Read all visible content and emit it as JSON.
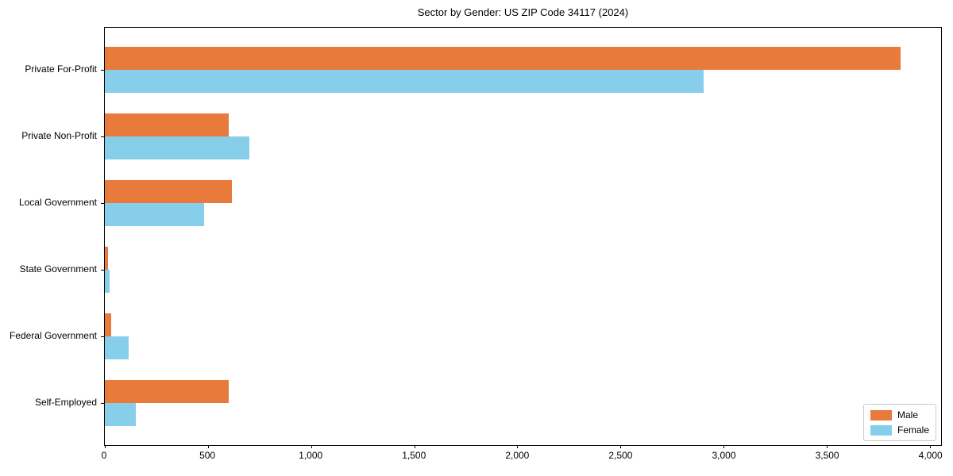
{
  "chart_data": {
    "type": "bar",
    "orientation": "horizontal",
    "title": "Sector by Gender: US ZIP Code 34117 (2024)",
    "categories": [
      "Private For-Profit",
      "Private Non-Profit",
      "Local Government",
      "State Government",
      "Federal Government",
      "Self-Employed"
    ],
    "series": [
      {
        "name": "Male",
        "color": "#E87A3C",
        "values": [
          3860,
          600,
          615,
          15,
          30,
          600
        ]
      },
      {
        "name": "Female",
        "color": "#87CEEB",
        "values": [
          2905,
          700,
          480,
          25,
          115,
          150
        ]
      }
    ],
    "xlim": [
      0,
      4055
    ],
    "xticks": [
      0,
      500,
      1000,
      1500,
      2000,
      2500,
      3000,
      3500,
      4000
    ],
    "xtick_labels": [
      "0",
      "500",
      "1,000",
      "1,500",
      "2,000",
      "2,500",
      "3,000",
      "3,500",
      "4,000"
    ],
    "xlabel": "",
    "ylabel": "",
    "grid": false,
    "legend_position": "lower right",
    "background": "#ffffff",
    "axis_color": "#000000"
  }
}
